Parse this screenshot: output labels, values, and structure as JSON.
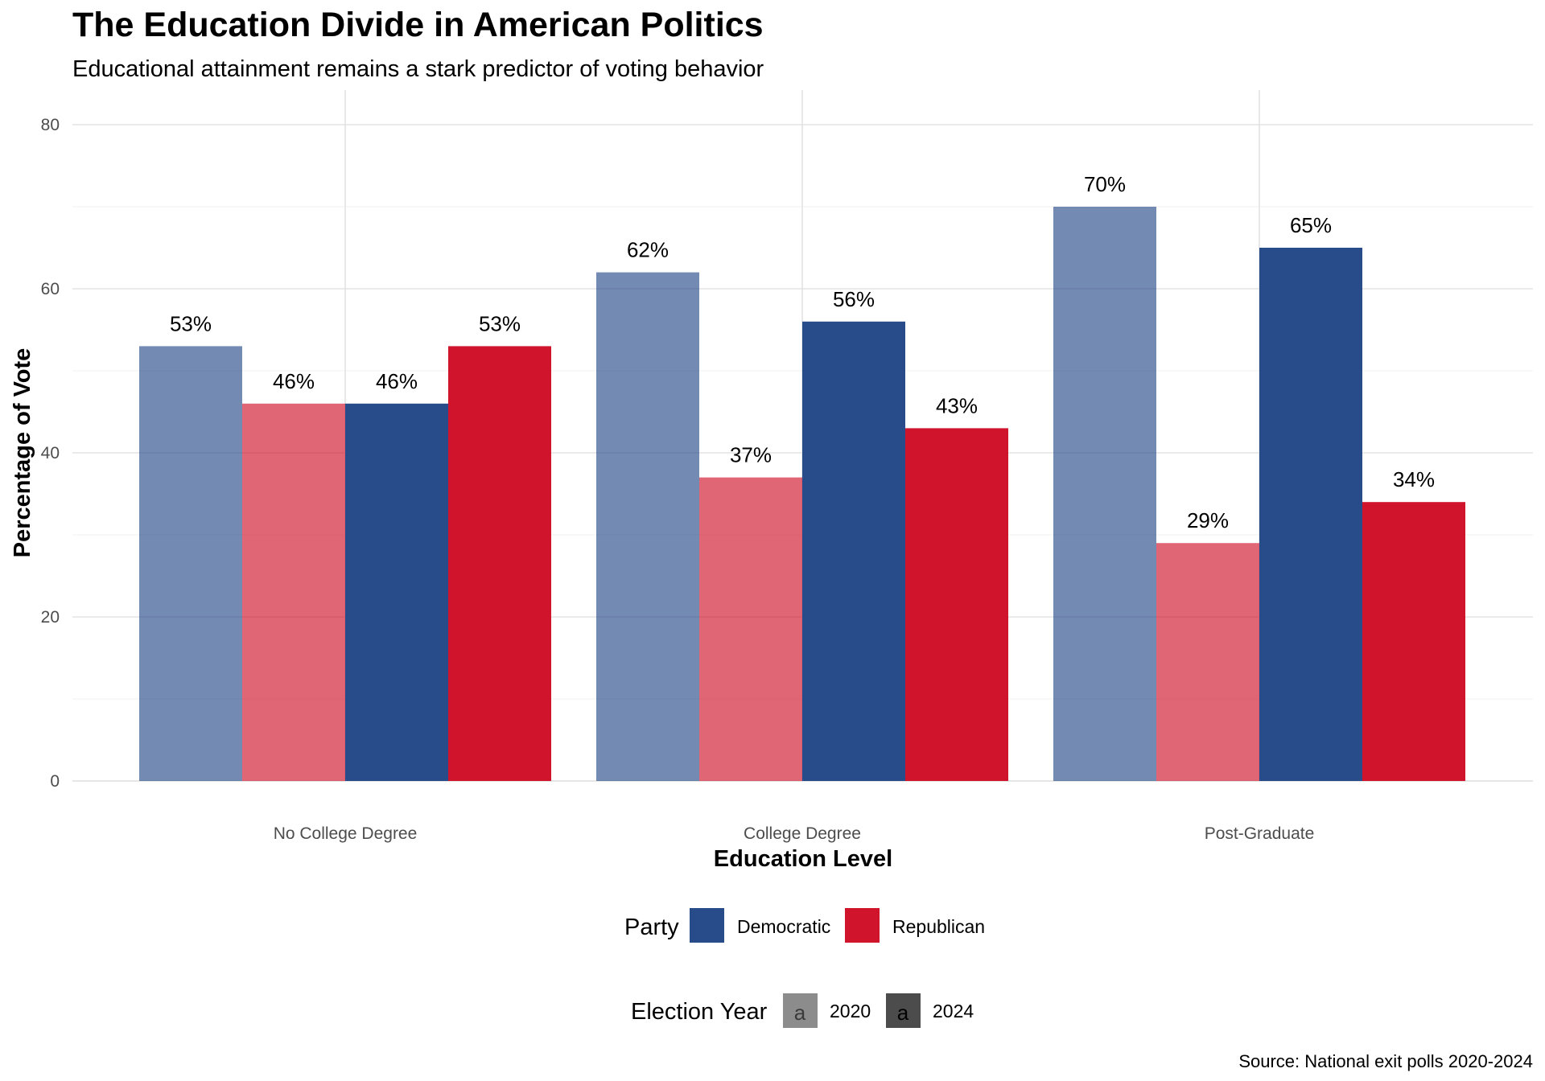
{
  "chart_data": {
    "type": "bar",
    "title": "The Education Divide in American Politics",
    "subtitle": "Educational attainment remains a stark predictor of voting behavior",
    "xlabel": "Education Level",
    "ylabel": "Percentage of Vote",
    "caption": "Source: National exit polls 2020-2024",
    "categories": [
      "No College Degree",
      "College Degree",
      "Post-Graduate"
    ],
    "ylim": [
      0,
      80
    ],
    "yticks": [
      0,
      20,
      40,
      60,
      80
    ],
    "grid": true,
    "legend_position": "bottom",
    "value_label_suffix": "%",
    "series": [
      {
        "name": "Democratic 2020",
        "party": "Democratic",
        "year": "2020",
        "values": [
          53,
          62,
          70
        ]
      },
      {
        "name": "Republican 2020",
        "party": "Republican",
        "year": "2020",
        "values": [
          46,
          37,
          29
        ]
      },
      {
        "name": "Democratic 2024",
        "party": "Democratic",
        "year": "2024",
        "values": [
          46,
          56,
          65
        ]
      },
      {
        "name": "Republican 2024",
        "party": "Republican",
        "year": "2024",
        "values": [
          53,
          43,
          34
        ]
      }
    ],
    "legends": {
      "party": {
        "title": "Party",
        "items": [
          {
            "label": "Democratic",
            "color": "#284b8a"
          },
          {
            "label": "Republican",
            "color": "#d0142c"
          }
        ]
      },
      "year": {
        "title": "Election Year",
        "glyph": "a",
        "items": [
          {
            "label": "2020",
            "opacity": 0.65
          },
          {
            "label": "2024",
            "opacity": 1.0
          }
        ]
      }
    }
  }
}
